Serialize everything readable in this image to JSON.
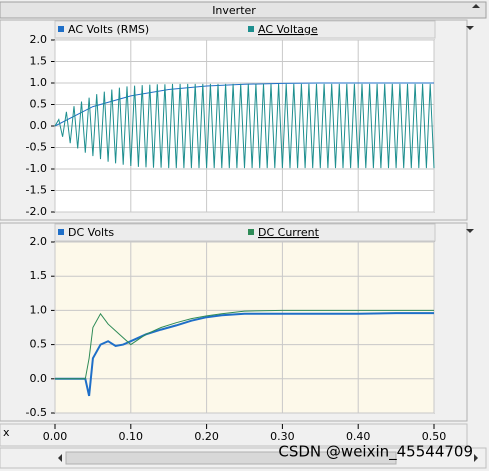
{
  "window": {
    "title": "Inverter"
  },
  "watermark": "CSDN @weixin_45544709",
  "x_axis": {
    "label": "x",
    "xlim": [
      0,
      0.5
    ],
    "xticks": [
      {
        "value": 0,
        "label": "0.00"
      },
      {
        "value": 0.1,
        "label": "0.10"
      },
      {
        "value": 0.2,
        "label": "0.20"
      },
      {
        "value": 0.3,
        "label": "0.30"
      },
      {
        "value": 0.4,
        "label": "0.40"
      },
      {
        "value": 0.5,
        "label": "0.50"
      }
    ]
  },
  "chart_data": [
    {
      "type": "line",
      "background": "#ffffff",
      "grid": true,
      "xlim": [
        0,
        0.5
      ],
      "ylim": [
        -2,
        2
      ],
      "yticks": [
        {
          "value": 2,
          "label": "2.0"
        },
        {
          "value": 1.5,
          "label": "1.5"
        },
        {
          "value": 1,
          "label": "1.0"
        },
        {
          "value": 0.5,
          "label": "0.5"
        },
        {
          "value": 0,
          "label": "0.0"
        },
        {
          "value": -0.5,
          "label": "-0.5"
        },
        {
          "value": -1,
          "label": "-1.0"
        },
        {
          "value": -1.5,
          "label": "-1.5"
        },
        {
          "value": -2,
          "label": "-2.0"
        }
      ],
      "series": [
        {
          "name": "AC Volts (RMS)",
          "color": "#1f6fc8",
          "x": [
            0,
            0.05,
            0.1,
            0.15,
            0.2,
            0.25,
            0.3,
            0.35,
            0.4,
            0.45,
            0.5
          ],
          "values": [
            0,
            0.45,
            0.7,
            0.85,
            0.93,
            0.97,
            0.99,
            1.0,
            1.0,
            1.0,
            1.0
          ]
        },
        {
          "name": "AC Voltage",
          "color": "#1e8f8f",
          "x": [
            0,
            0.005,
            0.01,
            0.015,
            0.02,
            0.025,
            0.03,
            0.035,
            0.04,
            0.045,
            0.05,
            0.055,
            0.06,
            0.065,
            0.07,
            0.075,
            0.08,
            0.085,
            0.09,
            0.095,
            0.1,
            0.105,
            0.11,
            0.115,
            0.12,
            0.125,
            0.13,
            0.135,
            0.14,
            0.145,
            0.15,
            0.155,
            0.16,
            0.165,
            0.17,
            0.175,
            0.18,
            0.185,
            0.19,
            0.195,
            0.2,
            0.205,
            0.21,
            0.215,
            0.22,
            0.225,
            0.23,
            0.235,
            0.24,
            0.245,
            0.25,
            0.255,
            0.26,
            0.265,
            0.27,
            0.275,
            0.28,
            0.285,
            0.29,
            0.295,
            0.3,
            0.305,
            0.31,
            0.315,
            0.32,
            0.325,
            0.33,
            0.335,
            0.34,
            0.345,
            0.35,
            0.355,
            0.36,
            0.365,
            0.37,
            0.375,
            0.38,
            0.385,
            0.39,
            0.395,
            0.4,
            0.405,
            0.41,
            0.415,
            0.42,
            0.425,
            0.43,
            0.435,
            0.44,
            0.445,
            0.45,
            0.455,
            0.46,
            0.465,
            0.47,
            0.475,
            0.48,
            0.485,
            0.49,
            0.495,
            0.5
          ],
          "values": [
            0,
            0.15,
            -0.25,
            0.33,
            -0.4,
            0.46,
            -0.52,
            0.57,
            -0.62,
            0.66,
            -0.7,
            0.74,
            -0.77,
            0.8,
            -0.83,
            0.85,
            -0.87,
            0.89,
            -0.9,
            0.92,
            -0.93,
            0.94,
            -0.95,
            0.95,
            -0.96,
            0.96,
            -0.97,
            0.97,
            -0.97,
            0.97,
            -0.98,
            0.98,
            -0.98,
            0.98,
            -0.98,
            0.98,
            -0.98,
            0.98,
            -0.98,
            0.98,
            -0.98,
            0.98,
            -0.98,
            0.98,
            -0.98,
            0.98,
            -0.98,
            0.98,
            -0.98,
            0.98,
            -0.98,
            0.98,
            -0.98,
            0.98,
            -0.98,
            0.98,
            -0.98,
            0.98,
            -0.98,
            0.98,
            -0.98,
            0.98,
            -0.98,
            0.98,
            -0.98,
            0.98,
            -0.98,
            0.98,
            -0.98,
            0.98,
            -0.98,
            0.98,
            -0.98,
            0.98,
            -0.98,
            0.98,
            -0.98,
            0.98,
            -0.98,
            0.98,
            -0.98,
            0.98,
            -0.98,
            0.98,
            -0.98,
            0.98,
            -0.98,
            0.98,
            -0.98,
            0.98,
            -0.98,
            0.98,
            -0.98,
            0.98,
            -0.98,
            0.98,
            -0.98,
            0.98,
            -0.98,
            0.98,
            -0.98
          ]
        }
      ]
    },
    {
      "type": "line",
      "background": "#fdf9ea",
      "grid": true,
      "xlim": [
        0,
        0.5
      ],
      "ylim": [
        -0.5,
        2
      ],
      "yticks": [
        {
          "value": 2,
          "label": "2.0"
        },
        {
          "value": 1.5,
          "label": "1.5"
        },
        {
          "value": 1,
          "label": "1.0"
        },
        {
          "value": 0.5,
          "label": "0.5"
        },
        {
          "value": 0,
          "label": "0.0"
        },
        {
          "value": -0.5,
          "label": "-0.5"
        }
      ],
      "series": [
        {
          "name": "DC Volts",
          "color": "#1f6fc8",
          "x": [
            0,
            0.03,
            0.04,
            0.045,
            0.05,
            0.06,
            0.07,
            0.08,
            0.09,
            0.1,
            0.12,
            0.14,
            0.16,
            0.18,
            0.2,
            0.22,
            0.25,
            0.3,
            0.35,
            0.4,
            0.45,
            0.5
          ],
          "values": [
            0,
            0,
            0,
            -0.25,
            0.3,
            0.5,
            0.55,
            0.48,
            0.5,
            0.55,
            0.65,
            0.72,
            0.78,
            0.85,
            0.9,
            0.93,
            0.95,
            0.95,
            0.95,
            0.95,
            0.96,
            0.96
          ]
        },
        {
          "name": "DC Current",
          "color": "#2e8b57",
          "x": [
            0,
            0.03,
            0.04,
            0.045,
            0.05,
            0.06,
            0.07,
            0.08,
            0.09,
            0.1,
            0.12,
            0.14,
            0.16,
            0.18,
            0.2,
            0.22,
            0.25,
            0.3,
            0.35,
            0.4,
            0.45,
            0.5
          ],
          "values": [
            0,
            0,
            0,
            0.3,
            0.75,
            0.95,
            0.8,
            0.7,
            0.6,
            0.5,
            0.65,
            0.75,
            0.82,
            0.88,
            0.92,
            0.95,
            0.99,
            1.0,
            1.0,
            1.0,
            1.0,
            1.0
          ]
        }
      ]
    }
  ]
}
